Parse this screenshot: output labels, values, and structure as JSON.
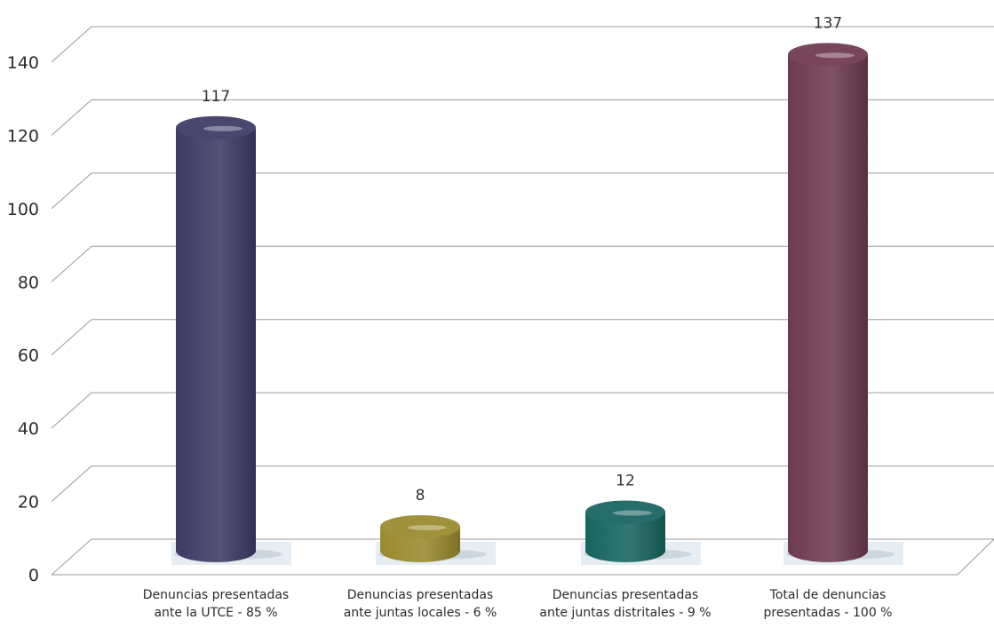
{
  "chart_data": {
    "type": "bar",
    "style": "3d-cylinder",
    "title": "",
    "xlabel": "",
    "ylabel": "",
    "ylim": [
      0,
      140
    ],
    "yticks": [
      0,
      20,
      40,
      60,
      80,
      100,
      120,
      140
    ],
    "grid": true,
    "categories": [
      [
        "Denuncias presentadas",
        "ante la UTCE - 85 %"
      ],
      [
        "Denuncias presentadas",
        "ante juntas locales - 6 %"
      ],
      [
        "Denuncias presentadas",
        "ante juntas distritales - 9 %"
      ],
      [
        "Total de denuncias",
        "presentadas - 100 %"
      ]
    ],
    "values": [
      117,
      8,
      12,
      137
    ],
    "data_labels": [
      "117",
      "8",
      "12",
      "137"
    ],
    "colors": [
      "#3d3a66",
      "#9a8a2e",
      "#17655f",
      "#6e3a4f"
    ]
  }
}
